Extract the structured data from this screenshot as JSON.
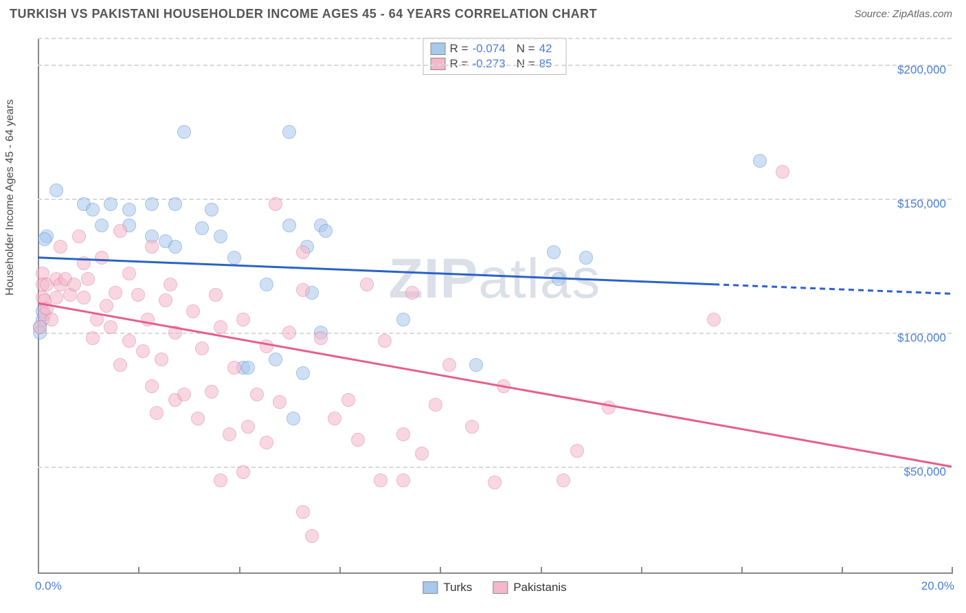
{
  "title": "TURKISH VS PAKISTANI HOUSEHOLDER INCOME AGES 45 - 64 YEARS CORRELATION CHART",
  "source": "Source: ZipAtlas.com",
  "yaxis_label": "Householder Income Ages 45 - 64 years",
  "watermark_zip": "ZIP",
  "watermark_atlas": "atlas",
  "chart": {
    "type": "scatter",
    "background_color": "#ffffff",
    "grid_color": "#d8d8d8",
    "axis_color": "#888888",
    "xlim": [
      0,
      20
    ],
    "ylim": [
      10000,
      210000
    ],
    "y_gridlines": [
      50000,
      100000,
      150000,
      200000
    ],
    "y_tick_labels": [
      "$50,000",
      "$100,000",
      "$150,000",
      "$200,000"
    ],
    "x_tick_positions": [
      0,
      2.2,
      4.4,
      6.6,
      8.8,
      11.0,
      13.2,
      15.4,
      17.6,
      20.0
    ],
    "x_tick_labels_left": "0.0%",
    "x_tick_labels_right": "20.0%",
    "series": [
      {
        "name": "Turks",
        "fill": "#a8c8ec",
        "stroke": "#5b91d6",
        "line_color": "#2a62c9",
        "fill_opacity": 0.55,
        "marker_radius": 10,
        "regression": {
          "x1": 0,
          "y1": 128000,
          "x2": 14.8,
          "y2": 118000,
          "x2_ext": 20,
          "y2_ext": 114500,
          "dash_from_x": 14.8
        },
        "correlation_R": "-0.074",
        "correlation_N": "42",
        "points": [
          [
            0.4,
            153000
          ],
          [
            0.2,
            136000
          ],
          [
            0.15,
            135000
          ],
          [
            0.1,
            108000
          ],
          [
            0.1,
            105000
          ],
          [
            0.05,
            102000
          ],
          [
            1.0,
            148000
          ],
          [
            1.2,
            146000
          ],
          [
            1.4,
            140000
          ],
          [
            1.6,
            148000
          ],
          [
            2.0,
            146000
          ],
          [
            2.0,
            140000
          ],
          [
            2.5,
            148000
          ],
          [
            2.5,
            136000
          ],
          [
            2.8,
            134000
          ],
          [
            3.0,
            148000
          ],
          [
            3.0,
            132000
          ],
          [
            3.2,
            175000
          ],
          [
            3.6,
            139000
          ],
          [
            3.8,
            146000
          ],
          [
            4.0,
            136000
          ],
          [
            4.3,
            128000
          ],
          [
            4.5,
            87000
          ],
          [
            4.6,
            87000
          ],
          [
            5.0,
            118000
          ],
          [
            5.2,
            90000
          ],
          [
            5.5,
            140000
          ],
          [
            5.5,
            175000
          ],
          [
            5.6,
            68000
          ],
          [
            5.8,
            85000
          ],
          [
            5.9,
            132000
          ],
          [
            6.0,
            115000
          ],
          [
            6.2,
            100000
          ],
          [
            6.2,
            140000
          ],
          [
            6.3,
            138000
          ],
          [
            8.0,
            105000
          ],
          [
            9.6,
            88000
          ],
          [
            11.3,
            130000
          ],
          [
            11.4,
            120000
          ],
          [
            12.0,
            128000
          ],
          [
            15.8,
            164000
          ],
          [
            0.05,
            100000
          ]
        ]
      },
      {
        "name": "Pakistanis",
        "fill": "#f4b8ca",
        "stroke": "#e17aa0",
        "line_color": "#e85d8d",
        "fill_opacity": 0.55,
        "marker_radius": 10,
        "regression": {
          "x1": 0,
          "y1": 111000,
          "x2": 20,
          "y2": 50000,
          "dash_from_x": 20
        },
        "correlation_R": "-0.273",
        "correlation_N": "85",
        "points": [
          [
            0.1,
            122000
          ],
          [
            0.1,
            118000
          ],
          [
            0.1,
            113000
          ],
          [
            0.15,
            112000
          ],
          [
            0.15,
            107000
          ],
          [
            0.2,
            109000
          ],
          [
            0.2,
            118000
          ],
          [
            0.3,
            105000
          ],
          [
            0.4,
            120000
          ],
          [
            0.4,
            113000
          ],
          [
            0.5,
            132000
          ],
          [
            0.5,
            118000
          ],
          [
            0.6,
            120000
          ],
          [
            0.7,
            114000
          ],
          [
            0.8,
            118000
          ],
          [
            0.9,
            136000
          ],
          [
            1.0,
            126000
          ],
          [
            1.0,
            113000
          ],
          [
            1.1,
            120000
          ],
          [
            1.2,
            98000
          ],
          [
            1.3,
            105000
          ],
          [
            1.4,
            128000
          ],
          [
            1.5,
            110000
          ],
          [
            1.6,
            102000
          ],
          [
            1.7,
            115000
          ],
          [
            1.8,
            88000
          ],
          [
            1.8,
            138000
          ],
          [
            2.0,
            97000
          ],
          [
            2.0,
            122000
          ],
          [
            2.2,
            114000
          ],
          [
            2.3,
            93000
          ],
          [
            2.4,
            105000
          ],
          [
            2.5,
            80000
          ],
          [
            2.5,
            132000
          ],
          [
            2.6,
            70000
          ],
          [
            2.7,
            90000
          ],
          [
            2.8,
            112000
          ],
          [
            2.9,
            118000
          ],
          [
            3.0,
            75000
          ],
          [
            3.0,
            100000
          ],
          [
            3.2,
            77000
          ],
          [
            3.4,
            108000
          ],
          [
            3.5,
            68000
          ],
          [
            3.6,
            94000
          ],
          [
            3.8,
            78000
          ],
          [
            3.9,
            114000
          ],
          [
            4.0,
            45000
          ],
          [
            4.0,
            102000
          ],
          [
            4.2,
            62000
          ],
          [
            4.3,
            87000
          ],
          [
            4.5,
            48000
          ],
          [
            4.5,
            105000
          ],
          [
            4.6,
            65000
          ],
          [
            4.8,
            77000
          ],
          [
            5.0,
            59000
          ],
          [
            5.0,
            95000
          ],
          [
            5.2,
            148000
          ],
          [
            5.3,
            74000
          ],
          [
            5.5,
            100000
          ],
          [
            5.8,
            116000
          ],
          [
            5.8,
            130000
          ],
          [
            5.8,
            33000
          ],
          [
            6.0,
            24000
          ],
          [
            6.2,
            98000
          ],
          [
            6.5,
            68000
          ],
          [
            6.8,
            75000
          ],
          [
            7.0,
            60000
          ],
          [
            7.2,
            118000
          ],
          [
            7.5,
            45000
          ],
          [
            7.6,
            97000
          ],
          [
            8.0,
            45000
          ],
          [
            8.0,
            62000
          ],
          [
            8.2,
            115000
          ],
          [
            8.4,
            55000
          ],
          [
            8.7,
            73000
          ],
          [
            9.0,
            88000
          ],
          [
            9.5,
            65000
          ],
          [
            10.0,
            44000
          ],
          [
            10.2,
            80000
          ],
          [
            11.5,
            45000
          ],
          [
            11.8,
            56000
          ],
          [
            12.5,
            72000
          ],
          [
            14.8,
            105000
          ],
          [
            16.3,
            160000
          ],
          [
            0.05,
            102000
          ]
        ]
      }
    ]
  },
  "corr_legend_labels": {
    "R": "R =",
    "N": "N ="
  },
  "bottom_legend": {
    "series1": "Turks",
    "series2": "Pakistanis"
  }
}
